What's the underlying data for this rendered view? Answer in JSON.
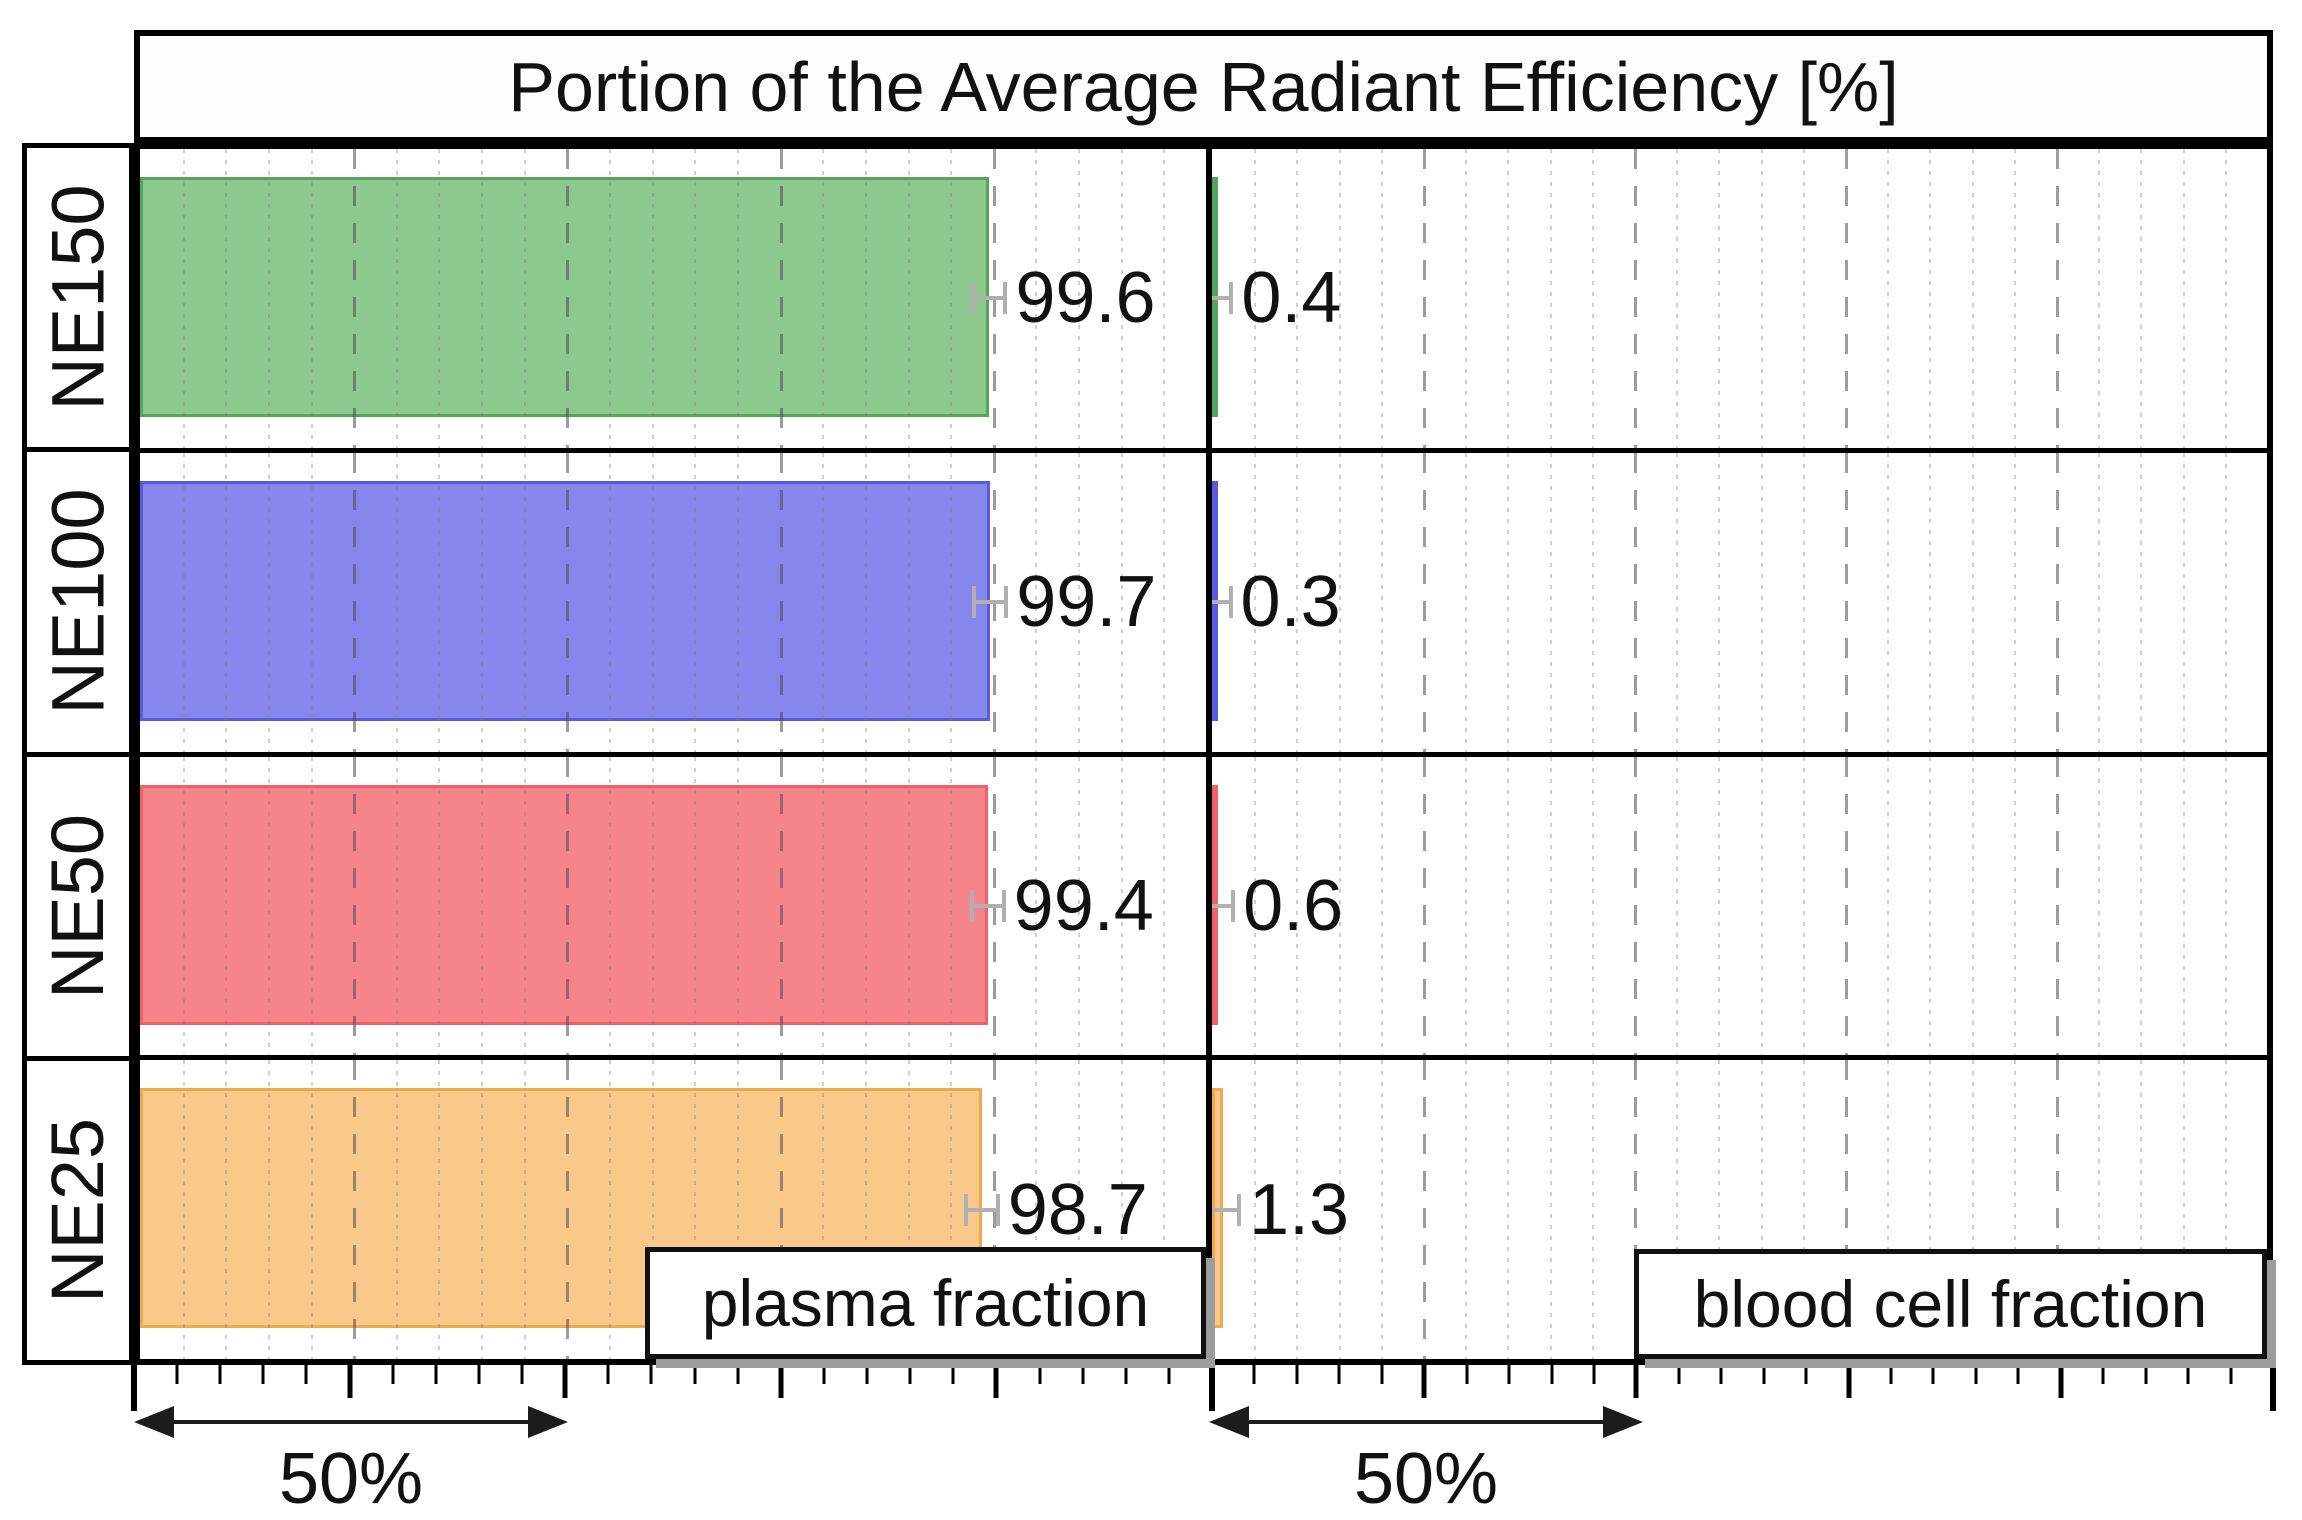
{
  "title": "Portion of the Average Radiant Efficiency [%]",
  "legend": {
    "left": "plasma fraction",
    "right": "blood cell fraction"
  },
  "scale_arrows": {
    "left_label": "50%",
    "right_label": "50%"
  },
  "chart_data": {
    "type": "bar",
    "orientation": "horizontal",
    "title": "Portion of the Average Radiant Efficiency [%]",
    "categories": [
      "NE150",
      "NE100",
      "NE50",
      "NE25"
    ],
    "series": [
      {
        "name": "plasma fraction",
        "panel": "left",
        "values": [
          99.6,
          99.7,
          99.4,
          98.7
        ]
      },
      {
        "name": "blood cell fraction",
        "panel": "right",
        "values": [
          0.4,
          0.3,
          0.6,
          1.3
        ]
      }
    ],
    "value_labels": {
      "left": [
        "99.6",
        "99.7",
        "99.4",
        "98.7"
      ],
      "right": [
        "0.4",
        "0.3",
        "0.6",
        "1.3"
      ]
    },
    "bar_colors": [
      {
        "category": "NE150",
        "fill": "#8dc88e",
        "edge": "#55a55c"
      },
      {
        "category": "NE100",
        "fill": "#8686ec",
        "edge": "#5a5adf"
      },
      {
        "category": "NE50",
        "fill": "#f5858b",
        "edge": "#ef6068"
      },
      {
        "category": "NE25",
        "fill": "#f9c98b",
        "edge": "#f1a94e"
      }
    ],
    "axis": {
      "min": 0,
      "max": 125,
      "major_step": 25,
      "minor_step": 5,
      "unit": "%"
    },
    "grid": {
      "major": "dashed",
      "minor": "dotted"
    },
    "error_bars": true,
    "legend_position": "bottom-right-of-each-panel",
    "panel_scale_annotation": "50%"
  }
}
